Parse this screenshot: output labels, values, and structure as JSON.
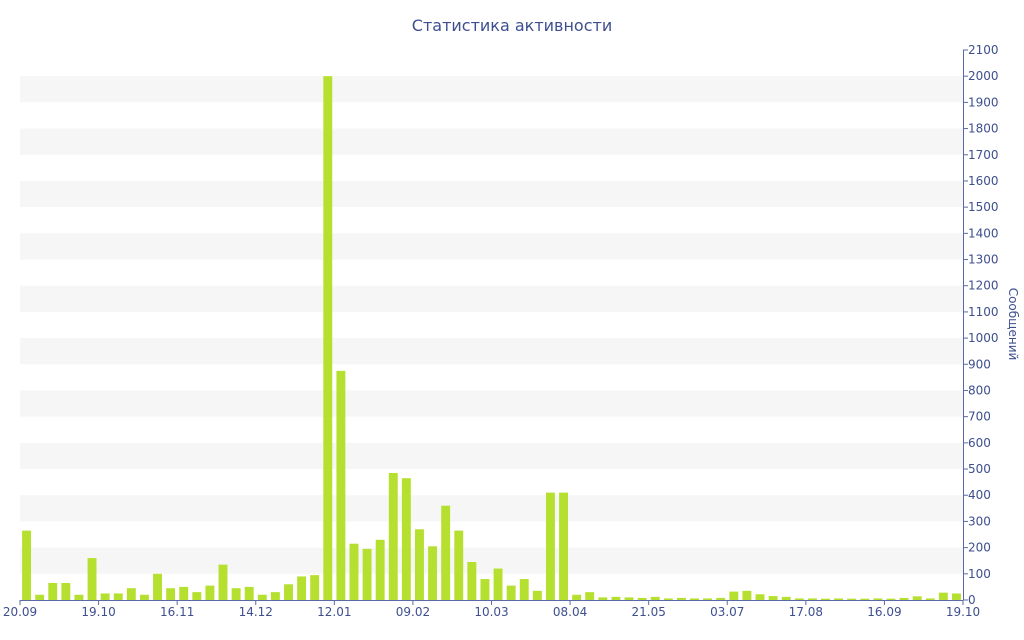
{
  "colors": {
    "bar": "#b5e02f",
    "axis": "#5a6aa8",
    "text": "#3e4f8f",
    "band": "#f6f6f6"
  },
  "chart_data": {
    "type": "bar",
    "title": "Статистика активности",
    "xlabel": "",
    "ylabel": "Сообщений",
    "y_axis_position": "right",
    "ylim": [
      0,
      2100
    ],
    "yticks": [
      0,
      100,
      200,
      300,
      400,
      500,
      600,
      700,
      800,
      900,
      1000,
      1100,
      1200,
      1300,
      1400,
      1500,
      1600,
      1700,
      1800,
      1900,
      2000,
      2100
    ],
    "grid": "alternating horizontal bands",
    "x_tick_labels": [
      {
        "index": 0,
        "label": "20.09"
      },
      {
        "index": 6,
        "label": "19.10"
      },
      {
        "index": 12,
        "label": "16.11"
      },
      {
        "index": 18,
        "label": "14.12"
      },
      {
        "index": 24,
        "label": "12.01"
      },
      {
        "index": 30,
        "label": "09.02"
      },
      {
        "index": 36,
        "label": "10.03"
      },
      {
        "index": 42,
        "label": "08.04"
      },
      {
        "index": 48,
        "label": "21.05"
      },
      {
        "index": 54,
        "label": "03.07"
      },
      {
        "index": 60,
        "label": "17.08"
      },
      {
        "index": 66,
        "label": "16.09"
      },
      {
        "index": 72,
        "label": "19.10"
      }
    ],
    "values": [
      265,
      20,
      65,
      65,
      20,
      160,
      25,
      25,
      45,
      20,
      100,
      45,
      50,
      30,
      55,
      135,
      45,
      50,
      20,
      30,
      60,
      90,
      95,
      2000,
      875,
      215,
      195,
      230,
      485,
      465,
      270,
      205,
      360,
      265,
      145,
      80,
      120,
      55,
      80,
      35,
      410,
      410,
      20,
      30,
      10,
      12,
      10,
      8,
      12,
      6,
      8,
      6,
      6,
      8,
      32,
      35,
      22,
      15,
      12,
      6,
      6,
      5,
      6,
      5,
      5,
      6,
      5,
      8,
      14,
      6,
      28,
      25
    ]
  }
}
